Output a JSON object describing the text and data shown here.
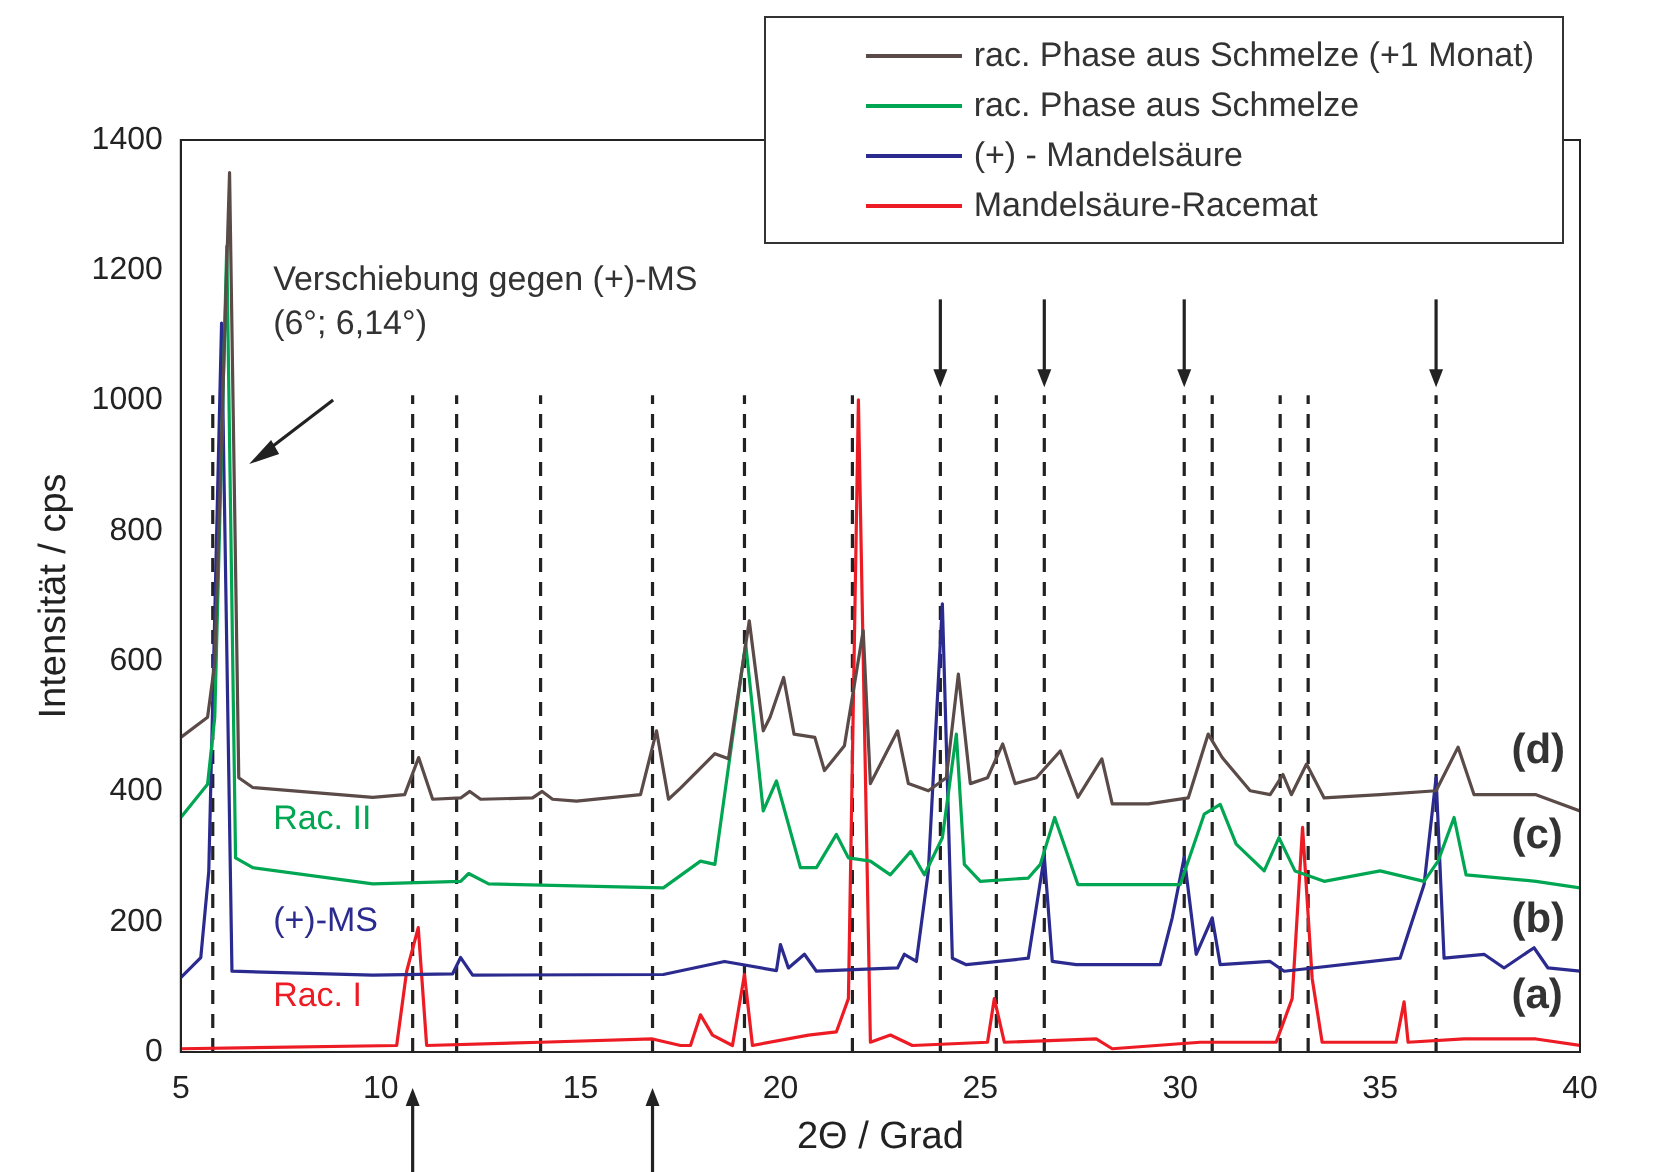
{
  "chart_data": {
    "type": "line",
    "xlabel": "2Θ / Grad",
    "ylabel": "Intensität / cps",
    "xlim": [
      5,
      40
    ],
    "xticks": [
      5,
      10,
      15,
      20,
      25,
      30,
      35,
      40
    ],
    "ylim": [
      0,
      1400
    ],
    "yticks": [
      0,
      200,
      400,
      600,
      800,
      1000,
      1200,
      1400
    ],
    "grid": false,
    "legend": "top right",
    "marker": "none",
    "line_style": "solid",
    "series": [
      {
        "name": "rac. Phase aus Schmelze (+1 Monat)",
        "color": "#5a4a48",
        "x": [
          5.0,
          5.67,
          5.85,
          6.22,
          6.45,
          6.8,
          9.8,
          10.6,
          10.95,
          11.3,
          12.0,
          12.23,
          12.5,
          13.8,
          14.04,
          14.3,
          14.9,
          16.5,
          16.9,
          17.2,
          17.5,
          18.36,
          18.7,
          19.22,
          19.57,
          19.74,
          20.08,
          20.34,
          20.86,
          21.1,
          21.6,
          22.07,
          22.25,
          22.93,
          23.2,
          23.7,
          24.15,
          24.45,
          24.75,
          25.18,
          25.56,
          25.87,
          26.4,
          27.0,
          27.44,
          28.04,
          28.3,
          29.2,
          30.2,
          30.7,
          31.05,
          31.75,
          32.25,
          32.57,
          32.78,
          33.16,
          33.6,
          35.0,
          36.4,
          36.95,
          37.35,
          38.9,
          40.0
        ],
        "values": [
          483,
          514,
          597,
          1350,
          421,
          406,
          391,
          395,
          452,
          388,
          390,
          400,
          388,
          390,
          400,
          388,
          385,
          395,
          493,
          388,
          405,
          458,
          450,
          662,
          493,
          514,
          575,
          488,
          483,
          432,
          470,
          647,
          412,
          493,
          412,
          401,
          421,
          580,
          412,
          421,
          473,
          412,
          421,
          462,
          391,
          450,
          381,
          381,
          390,
          488,
          452,
          401,
          395,
          426,
          395,
          442,
          390,
          395,
          401,
          468,
          395,
          395,
          370
        ]
      },
      {
        "name": "rac. Phase aus Schmelze",
        "color": "#00a651",
        "x": [
          5.0,
          5.67,
          5.85,
          6.15,
          6.37,
          6.8,
          9.8,
          12.0,
          12.2,
          12.7,
          17.07,
          18.0,
          18.36,
          19.13,
          19.57,
          19.9,
          20.5,
          20.9,
          21.4,
          21.7,
          22.25,
          22.75,
          23.26,
          23.6,
          24.05,
          24.4,
          24.6,
          25.0,
          26.2,
          26.5,
          26.86,
          27.44,
          30.0,
          30.6,
          31.0,
          31.4,
          32.1,
          32.47,
          32.87,
          33.6,
          35.0,
          36.1,
          36.45,
          36.85,
          37.15,
          38.9,
          40.0
        ],
        "values": [
          360,
          411,
          514,
          1237,
          298,
          283,
          258,
          262,
          274,
          258,
          252,
          293,
          288,
          627,
          370,
          416,
          283,
          283,
          334,
          298,
          293,
          272,
          308,
          272,
          329,
          488,
          288,
          262,
          267,
          288,
          360,
          257,
          257,
          365,
          380,
          319,
          278,
          329,
          278,
          262,
          278,
          262,
          293,
          360,
          272,
          262,
          252
        ]
      },
      {
        "name": "(+) - Mandelsäure",
        "color": "#2b2a8f",
        "x": [
          5.0,
          5.5,
          5.7,
          6.02,
          6.28,
          9.8,
          11.8,
          12.0,
          12.3,
          17.07,
          18.6,
          19.9,
          20.0,
          20.2,
          20.6,
          20.9,
          22.93,
          23.1,
          23.4,
          23.7,
          24.05,
          24.3,
          24.65,
          26.2,
          26.6,
          26.8,
          27.4,
          29.5,
          29.8,
          30.1,
          30.4,
          30.8,
          31.0,
          32.25,
          32.6,
          35.5,
          36.1,
          36.4,
          36.6,
          37.6,
          38.1,
          38.85,
          39.2,
          40.0
        ],
        "values": [
          114,
          145,
          277,
          1119,
          124,
          118,
          120,
          145,
          118,
          119,
          139,
          125,
          165,
          129,
          150,
          124,
          129,
          150,
          139,
          278,
          688,
          144,
          134,
          144,
          300,
          139,
          134,
          134,
          206,
          299,
          150,
          206,
          134,
          139,
          124,
          144,
          257,
          421,
          144,
          150,
          129,
          160,
          129,
          124
        ]
      },
      {
        "name": "Mandelsäure-Racemat",
        "color": "#ed1c24",
        "x": [
          5.0,
          10.4,
          10.65,
          10.94,
          11.15,
          14.0,
          16.8,
          17.5,
          17.75,
          18.0,
          18.3,
          18.8,
          19.1,
          19.3,
          20.7,
          21.4,
          21.7,
          21.95,
          22.25,
          22.75,
          23.3,
          25.18,
          25.35,
          25.6,
          27.9,
          28.3,
          30.5,
          32.4,
          32.8,
          33.06,
          33.3,
          33.55,
          35.4,
          35.6,
          35.7,
          37.1,
          38.9,
          40.0
        ],
        "values": [
          5,
          10,
          124,
          191,
          10,
          15,
          20,
          10,
          10,
          57,
          26,
          10,
          119,
          10,
          26,
          31,
          82,
          1001,
          15,
          26,
          10,
          15,
          82,
          15,
          20,
          5,
          15,
          15,
          82,
          345,
          113,
          15,
          15,
          77,
          15,
          20,
          20,
          10
        ]
      }
    ],
    "ref_lines": [
      {
        "axis": "x",
        "value": 5.8,
        "color": "#222222",
        "line_style": "dashed"
      },
      {
        "axis": "x",
        "value": 10.8,
        "color": "#222222",
        "line_style": "dashed"
      },
      {
        "axis": "x",
        "value": 11.9,
        "color": "#222222",
        "line_style": "dashed"
      },
      {
        "axis": "x",
        "value": 14.0,
        "color": "#222222",
        "line_style": "dashed"
      },
      {
        "axis": "x",
        "value": 16.8,
        "color": "#222222",
        "line_style": "dashed"
      },
      {
        "axis": "x",
        "value": 19.1,
        "color": "#222222",
        "line_style": "dashed"
      },
      {
        "axis": "x",
        "value": 21.8,
        "color": "#222222",
        "line_style": "dashed"
      },
      {
        "axis": "x",
        "value": 24.0,
        "color": "#222222",
        "line_style": "dashed"
      },
      {
        "axis": "x",
        "value": 25.4,
        "color": "#222222",
        "line_style": "dashed"
      },
      {
        "axis": "x",
        "value": 26.6,
        "color": "#222222",
        "line_style": "dashed"
      },
      {
        "axis": "x",
        "value": 30.1,
        "color": "#222222",
        "line_style": "dashed"
      },
      {
        "axis": "x",
        "value": 30.8,
        "color": "#222222",
        "line_style": "dashed"
      },
      {
        "axis": "x",
        "value": 32.5,
        "color": "#222222",
        "line_style": "dashed"
      },
      {
        "axis": "x",
        "value": 33.2,
        "color": "#222222",
        "line_style": "dashed"
      },
      {
        "axis": "x",
        "value": 36.4,
        "color": "#222222",
        "line_style": "dashed"
      }
    ],
    "annotations": [
      "Verschiebung gegen (+)-MS\n(6°; 6,14°)",
      "Rac. II",
      "(+)-MS",
      "Rac. I",
      "(d)",
      "(c)",
      "(b)",
      "(a)"
    ]
  }
}
